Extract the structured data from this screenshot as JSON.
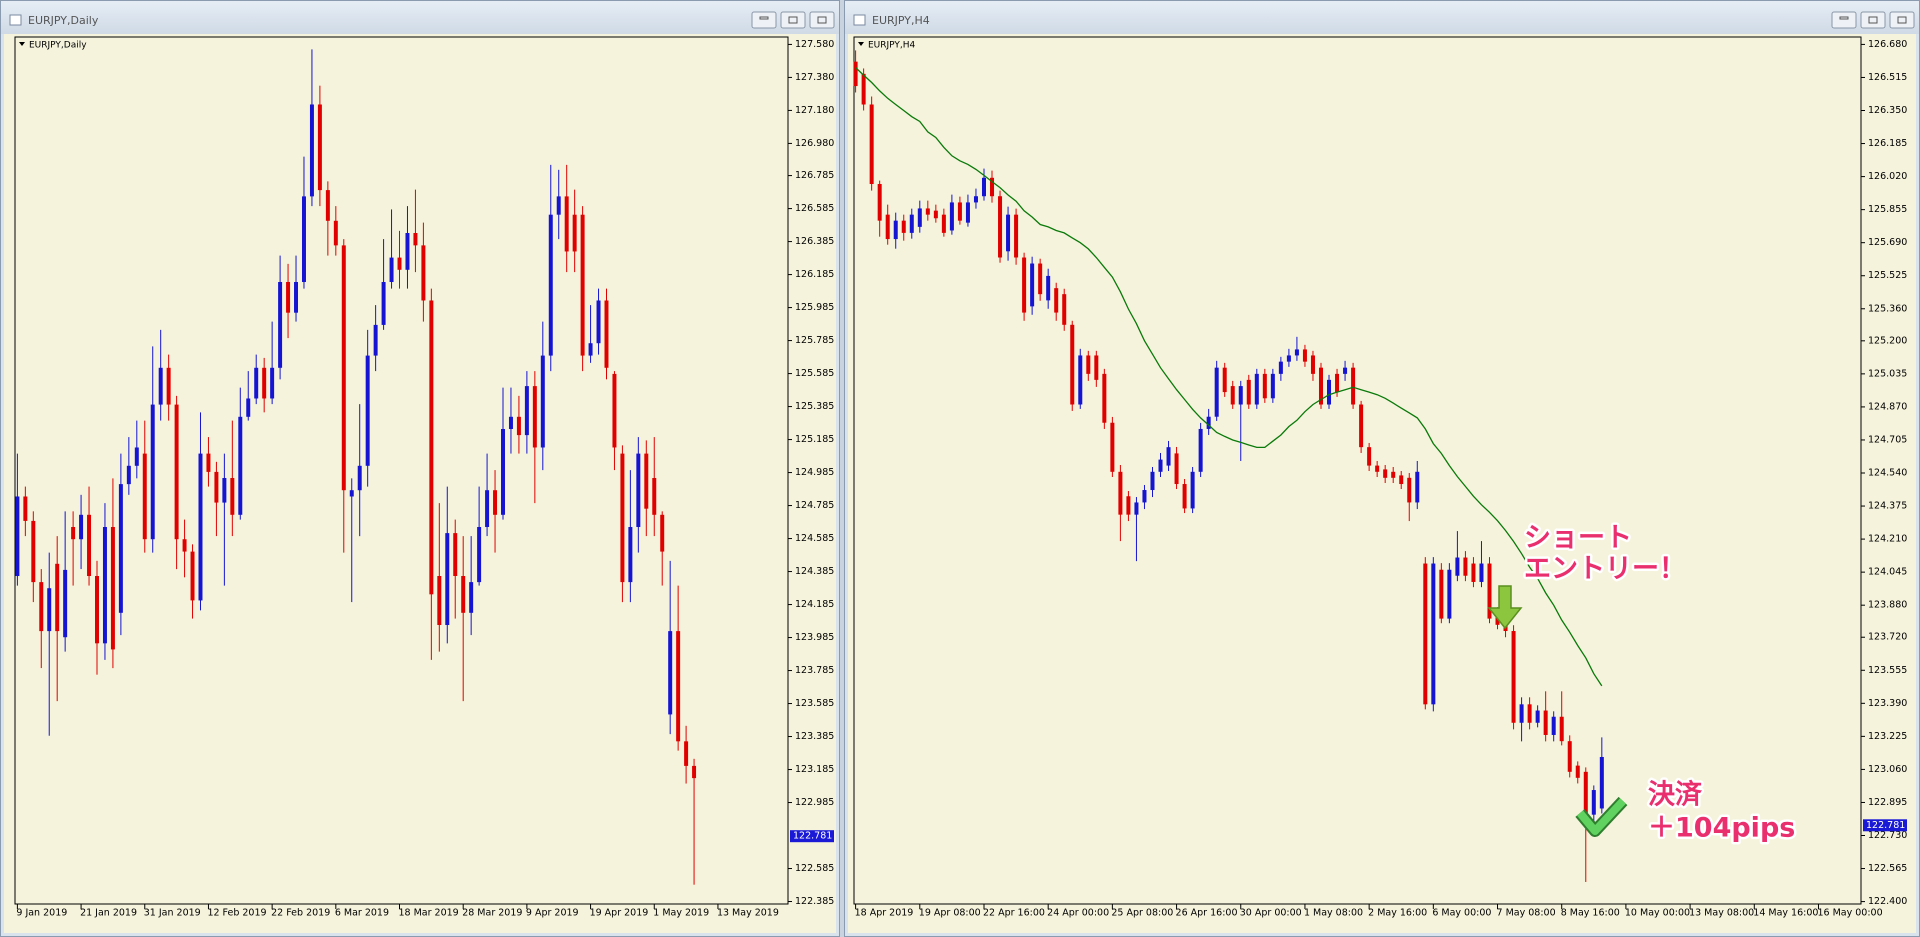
{
  "chart_data": [
    {
      "type": "candlestick",
      "window_title": "EURJPY,Daily",
      "title": "EURJPY,Daily",
      "up_color": "#1414d2",
      "down_color": "#e00000",
      "current_price": 122.781,
      "current_price_color": "#1a1ad6",
      "xlim": [
        -0.3,
        96.8
      ],
      "xticks": [
        {
          "value": 0,
          "label": "9 Jan 2019"
        },
        {
          "value": 8,
          "label": "21 Jan 2019"
        },
        {
          "value": 16,
          "label": "31 Jan 2019"
        },
        {
          "value": 24,
          "label": "12 Feb 2019"
        },
        {
          "value": 32,
          "label": "22 Feb 2019"
        },
        {
          "value": 40,
          "label": "6 Mar 2019"
        },
        {
          "value": 48,
          "label": "18 Mar 2019"
        },
        {
          "value": 56,
          "label": "28 Mar 2019"
        },
        {
          "value": 64,
          "label": "9 Apr 2019"
        },
        {
          "value": 72,
          "label": "19 Apr 2019"
        },
        {
          "value": 80,
          "label": "1 May 2019"
        },
        {
          "value": 88,
          "label": "13 May 2019"
        }
      ],
      "ylim": [
        122.37,
        127.625
      ],
      "yticks": [
        {
          "value": 127.58,
          "label": "127.580"
        },
        {
          "value": 127.38,
          "label": "127.380"
        },
        {
          "value": 127.18,
          "label": "127.180"
        },
        {
          "value": 126.98,
          "label": "126.980"
        },
        126.785,
        126.585,
        126.385,
        126.185,
        125.985,
        125.785,
        125.585,
        125.385,
        125.185,
        124.985,
        124.785,
        124.585,
        124.385,
        124.185,
        123.985,
        123.785,
        123.585,
        123.385,
        123.185,
        122.985,
        122.585,
        122.385
      ],
      "open": [
        124.358,
        124.84,
        124.692,
        124.321,
        124.024,
        124.432,
        123.987,
        124.655,
        124.581,
        124.729,
        124.358,
        123.95,
        124.655,
        124.135,
        124.915,
        125.026,
        125.1,
        124.581,
        125.397,
        125.62,
        125.397,
        124.581,
        124.506,
        124.21,
        125.1,
        124.989,
        124.803,
        124.952,
        124.729,
        125.323,
        125.434,
        125.62,
        125.434,
        125.62,
        126.14,
        125.954,
        126.14,
        126.659,
        127.216,
        126.697,
        126.511,
        126.362,
        124.84,
        124.878,
        125.026,
        125.694,
        125.88,
        126.14,
        126.288,
        126.214,
        126.437,
        126.362,
        126.028,
        124.358,
        124.061,
        124.618,
        124.358,
        124.135,
        124.321,
        124.655,
        124.878,
        124.729,
        125.249,
        125.323,
        125.212,
        125.509,
        125.137,
        125.694,
        126.548,
        126.659,
        126.548,
        126.548,
        125.694,
        125.769,
        126.028,
        125.583,
        125.1,
        124.321,
        124.655,
        125.1,
        124.952,
        124.729,
        123.519,
        124.024,
        123.356,
        123.207
      ],
      "high": [
        125.1,
        124.9,
        124.75,
        124.4,
        124.5,
        124.6,
        124.75,
        124.75,
        124.85,
        124.9,
        124.45,
        124.8,
        124.95,
        125.1,
        125.2,
        125.3,
        125.3,
        125.75,
        125.85,
        125.7,
        125.45,
        124.7,
        124.55,
        125.35,
        125.2,
        125.05,
        125.1,
        125.3,
        125.5,
        125.6,
        125.7,
        125.68,
        125.9,
        126.3,
        126.25,
        126.3,
        126.9,
        127.55,
        127.33,
        126.75,
        126.6,
        126.4,
        124.95,
        125.4,
        125.85,
        126.0,
        126.4,
        126.58,
        126.45,
        126.6,
        126.7,
        126.5,
        126.1,
        124.8,
        124.9,
        124.7,
        124.6,
        124.6,
        124.9,
        125.1,
        125.0,
        125.5,
        125.5,
        125.45,
        125.6,
        125.6,
        125.9,
        126.85,
        126.82,
        126.85,
        126.7,
        126.6,
        126.0,
        126.1,
        126.1,
        125.6,
        125.15,
        125.0,
        125.2,
        125.18,
        125.2,
        124.75,
        124.45,
        124.3,
        123.45,
        123.25
      ],
      "low": [
        124.3,
        124.6,
        124.2,
        123.8,
        123.39,
        123.6,
        123.9,
        124.3,
        124.4,
        124.3,
        123.76,
        123.85,
        123.8,
        124.0,
        124.85,
        124.95,
        124.5,
        124.5,
        125.3,
        125.3,
        124.4,
        124.35,
        124.1,
        124.15,
        124.9,
        124.6,
        124.3,
        124.6,
        124.7,
        125.3,
        125.4,
        125.35,
        125.4,
        125.55,
        125.8,
        125.9,
        126.1,
        126.6,
        126.6,
        126.3,
        126.3,
        124.5,
        124.2,
        124.6,
        124.9,
        125.6,
        125.85,
        126.1,
        126.1,
        126.1,
        126.2,
        125.9,
        123.85,
        123.9,
        123.95,
        124.1,
        123.6,
        124.0,
        124.3,
        124.6,
        124.5,
        124.7,
        125.1,
        125.1,
        125.1,
        124.8,
        125.0,
        125.6,
        126.4,
        126.2,
        126.2,
        125.6,
        125.65,
        125.7,
        125.55,
        125.0,
        124.2,
        124.2,
        124.5,
        124.6,
        124.6,
        124.3,
        123.4,
        123.3,
        123.1,
        122.487
      ],
      "close": [
        124.84,
        124.692,
        124.321,
        124.024,
        124.284,
        124.024,
        124.395,
        124.581,
        124.729,
        124.358,
        123.95,
        124.655,
        123.913,
        124.915,
        125.026,
        125.137,
        124.581,
        125.397,
        125.62,
        125.397,
        124.581,
        124.506,
        124.21,
        125.1,
        124.989,
        124.803,
        124.952,
        124.729,
        125.323,
        125.434,
        125.62,
        125.434,
        125.62,
        126.14,
        125.954,
        126.14,
        126.659,
        127.216,
        126.697,
        126.511,
        126.362,
        124.878,
        124.878,
        125.026,
        125.694,
        125.88,
        126.14,
        126.288,
        126.214,
        126.437,
        126.362,
        126.028,
        124.247,
        124.061,
        124.618,
        124.358,
        124.135,
        124.321,
        124.655,
        124.878,
        124.729,
        125.249,
        125.323,
        125.212,
        125.509,
        125.137,
        125.694,
        126.548,
        126.659,
        126.325,
        126.325,
        125.694,
        125.769,
        126.028,
        125.62,
        125.137,
        124.321,
        124.655,
        125.1,
        124.766,
        124.729,
        124.506,
        124.024,
        123.356,
        123.207,
        123.133
      ]
    },
    {
      "type": "candlestick",
      "window_title": "EURJPY,H4",
      "title": "EURJPY,H4",
      "up_color": "#1414d2",
      "down_color": "#e00000",
      "current_price": 122.781,
      "current_price_color": "#1a1ad6",
      "xlim": [
        -0.2,
        125.3
      ],
      "xticks": [
        {
          "value": 0,
          "label": "18 Apr 2019"
        },
        {
          "value": 8,
          "label": "19 Apr 08:00"
        },
        {
          "value": 16,
          "label": "22 Apr 16:00"
        },
        {
          "value": 24,
          "label": "24 Apr 00:00"
        },
        {
          "value": 32,
          "label": "25 Apr 08:00"
        },
        {
          "value": 40,
          "label": "26 Apr 16:00"
        },
        {
          "value": 48,
          "label": "30 Apr 00:00"
        },
        {
          "value": 56,
          "label": "1 May 08:00"
        },
        {
          "value": 64,
          "label": "2 May 16:00"
        },
        {
          "value": 72,
          "label": "6 May 00:00"
        },
        {
          "value": 80,
          "label": "7 May 08:00"
        },
        {
          "value": 88,
          "label": "8 May 16:00"
        },
        {
          "value": 96,
          "label": "10 May 00:00"
        },
        {
          "value": 104,
          "label": "13 May 08:00"
        },
        {
          "value": 112,
          "label": "14 May 16:00"
        },
        {
          "value": 120,
          "label": "16 May 00:00"
        }
      ],
      "ylim": [
        122.388,
        126.717
      ],
      "yticks": [
        {
          "value": 126.68,
          "label": "126.680"
        },
        126.515,
        {
          "value": 126.35,
          "label": "126.350"
        },
        126.185,
        {
          "value": 126.02,
          "label": "126.020"
        },
        125.855,
        {
          "value": 125.69,
          "label": "125.690"
        },
        125.525,
        {
          "value": 125.36,
          "label": "125.360"
        },
        {
          "value": 125.2,
          "label": "125.200"
        },
        125.035,
        {
          "value": 124.87,
          "label": "124.870"
        },
        124.705,
        {
          "value": 124.54,
          "label": "124.540"
        },
        124.375,
        {
          "value": 124.21,
          "label": "124.210"
        },
        124.045,
        {
          "value": 123.88,
          "label": "123.880"
        },
        {
          "value": 123.72,
          "label": "123.720"
        },
        123.555,
        {
          "value": 123.39,
          "label": "123.390"
        },
        123.225,
        {
          "value": 123.06,
          "label": "123.060"
        },
        122.895,
        {
          "value": 122.73,
          "label": "122.730"
        },
        122.565,
        {
          "value": 122.4,
          "label": "122.400"
        }
      ],
      "open": [
        126.594,
        126.533,
        126.38,
        125.983,
        125.83,
        125.708,
        125.8,
        125.739,
        125.769,
        125.861,
        125.85,
        125.83,
        125.751,
        125.891,
        125.79,
        125.891,
        125.922,
        126.014,
        125.922,
        125.647,
        125.83,
        125.616,
        125.372,
        125.586,
        125.402,
        125.463,
        125.433,
        125.28,
        124.882,
        125.127,
        125.127,
        125.035,
        124.791,
        124.546,
        124.424,
        124.332,
        124.393,
        124.455,
        124.546,
        124.577,
        124.638,
        124.485,
        124.363,
        124.546,
        124.76,
        124.821,
        125.066,
        124.974,
        124.882,
        125.005,
        124.882,
        125.035,
        124.913,
        125.035,
        125.096,
        125.127,
        125.157,
        125.127,
        125.066,
        124.882,
        125.035,
        125.035,
        125.066,
        124.882,
        124.669,
        124.577,
        124.558,
        124.546,
        124.528,
        124.516,
        124.393,
        124.088,
        123.385,
        124.057,
        123.813,
        124.027,
        124.118,
        124.088,
        123.996,
        124.088,
        123.843,
        123.782,
        123.751,
        123.293,
        123.385,
        123.293,
        123.354,
        123.232,
        123.323,
        123.201,
        123.079,
        123.048,
        122.834,
        122.865
      ],
      "high": [
        126.65,
        126.56,
        126.42,
        126.0,
        125.88,
        125.84,
        125.83,
        125.86,
        125.9,
        125.9,
        125.88,
        125.86,
        125.93,
        125.92,
        125.93,
        125.96,
        126.06,
        126.05,
        125.95,
        125.87,
        125.86,
        125.64,
        125.62,
        125.61,
        125.56,
        125.49,
        125.46,
        125.3,
        125.16,
        125.15,
        125.15,
        125.06,
        124.82,
        124.58,
        124.45,
        124.42,
        124.48,
        124.57,
        124.64,
        124.7,
        124.67,
        124.51,
        124.57,
        124.79,
        124.86,
        125.1,
        125.09,
        125.0,
        125.0,
        125.03,
        125.06,
        125.06,
        125.06,
        125.12,
        125.16,
        125.22,
        125.18,
        125.15,
        125.09,
        125.03,
        125.06,
        125.1,
        125.09,
        124.9,
        124.69,
        124.6,
        124.58,
        124.57,
        124.55,
        124.54,
        124.6,
        124.12,
        124.12,
        124.09,
        124.09,
        124.25,
        124.15,
        124.12,
        124.2,
        124.12,
        123.87,
        123.8,
        123.78,
        123.42,
        123.42,
        123.38,
        123.45,
        123.35,
        123.45,
        123.23,
        123.1,
        123.07,
        122.98,
        123.22
      ],
      "low": [
        126.44,
        126.35,
        125.95,
        125.72,
        125.68,
        125.66,
        125.7,
        125.71,
        125.74,
        125.8,
        125.79,
        125.72,
        125.73,
        125.78,
        125.77,
        125.86,
        125.9,
        125.89,
        125.59,
        125.6,
        125.58,
        125.3,
        125.33,
        125.4,
        125.36,
        125.3,
        125.25,
        124.85,
        124.86,
        125.0,
        124.97,
        124.76,
        124.52,
        124.2,
        124.3,
        124.1,
        124.36,
        124.42,
        124.52,
        124.55,
        124.46,
        124.34,
        124.34,
        124.52,
        124.73,
        124.8,
        124.92,
        124.86,
        124.6,
        124.86,
        124.86,
        124.89,
        124.89,
        125.0,
        125.07,
        125.1,
        125.07,
        125.0,
        124.86,
        124.86,
        124.92,
        125.0,
        124.86,
        124.64,
        124.55,
        124.52,
        124.49,
        124.49,
        124.46,
        124.3,
        124.36,
        123.36,
        123.35,
        123.79,
        123.79,
        124.0,
        124.0,
        123.97,
        123.97,
        123.79,
        123.76,
        123.72,
        123.26,
        123.2,
        123.26,
        123.27,
        123.2,
        123.2,
        123.18,
        123.02,
        122.99,
        122.498,
        122.8,
        122.84
      ],
      "close": [
        126.472,
        126.38,
        125.983,
        125.8,
        125.708,
        125.8,
        125.739,
        125.83,
        125.861,
        125.83,
        125.812,
        125.739,
        125.891,
        125.8,
        125.891,
        125.922,
        126.014,
        125.922,
        125.616,
        125.83,
        125.616,
        125.341,
        125.586,
        125.433,
        125.524,
        125.341,
        125.28,
        124.882,
        125.127,
        125.035,
        125.005,
        124.791,
        124.546,
        124.332,
        124.332,
        124.393,
        124.455,
        124.546,
        124.607,
        124.669,
        124.485,
        124.363,
        124.546,
        124.76,
        124.821,
        125.066,
        124.944,
        124.882,
        124.974,
        124.882,
        125.035,
        124.913,
        125.035,
        125.096,
        125.127,
        125.157,
        125.096,
        125.035,
        124.882,
        125.005,
        124.944,
        125.066,
        124.882,
        124.669,
        124.577,
        124.546,
        124.516,
        124.516,
        124.485,
        124.393,
        124.546,
        123.385,
        124.088,
        123.813,
        124.057,
        124.118,
        124.027,
        123.996,
        124.088,
        123.813,
        123.782,
        123.751,
        123.293,
        123.385,
        123.293,
        123.354,
        123.232,
        123.323,
        123.201,
        123.048,
        123.018,
        122.834,
        122.957,
        123.122
      ],
      "moving_average": {
        "color": "#0a7a0a",
        "values": [
          126.564,
          126.527,
          126.49,
          126.448,
          126.411,
          126.38,
          126.35,
          126.319,
          126.295,
          126.243,
          126.215,
          126.166,
          126.124,
          126.099,
          126.081,
          126.056,
          126.026,
          125.995,
          125.965,
          125.928,
          125.897,
          125.849,
          125.818,
          125.781,
          125.769,
          125.751,
          125.739,
          125.714,
          125.69,
          125.659,
          125.616,
          125.567,
          125.518,
          125.445,
          125.359,
          125.286,
          125.2,
          125.133,
          125.066,
          125.011,
          124.956,
          124.907,
          124.858,
          124.815,
          124.779,
          124.742,
          124.723,
          124.705,
          124.693,
          124.68,
          124.668,
          124.668,
          124.699,
          124.73,
          124.772,
          124.803,
          124.846,
          124.882,
          124.907,
          124.931,
          124.944,
          124.956,
          124.968,
          124.956,
          124.944,
          124.931,
          124.913,
          124.889,
          124.864,
          124.84,
          124.815,
          124.76,
          124.687,
          124.638,
          124.577,
          124.522,
          124.473,
          124.424,
          124.381,
          124.344,
          124.302,
          124.253,
          124.198,
          124.137,
          124.07,
          124.014,
          123.941,
          123.88,
          123.806,
          123.745,
          123.678,
          123.617,
          123.538,
          123.477
        ]
      },
      "annotations": [
        {
          "lines": [
            "ショート",
            "エントリー！"
          ]
        },
        {
          "lines": [
            "決済",
            "＋104pips"
          ]
        }
      ]
    }
  ]
}
